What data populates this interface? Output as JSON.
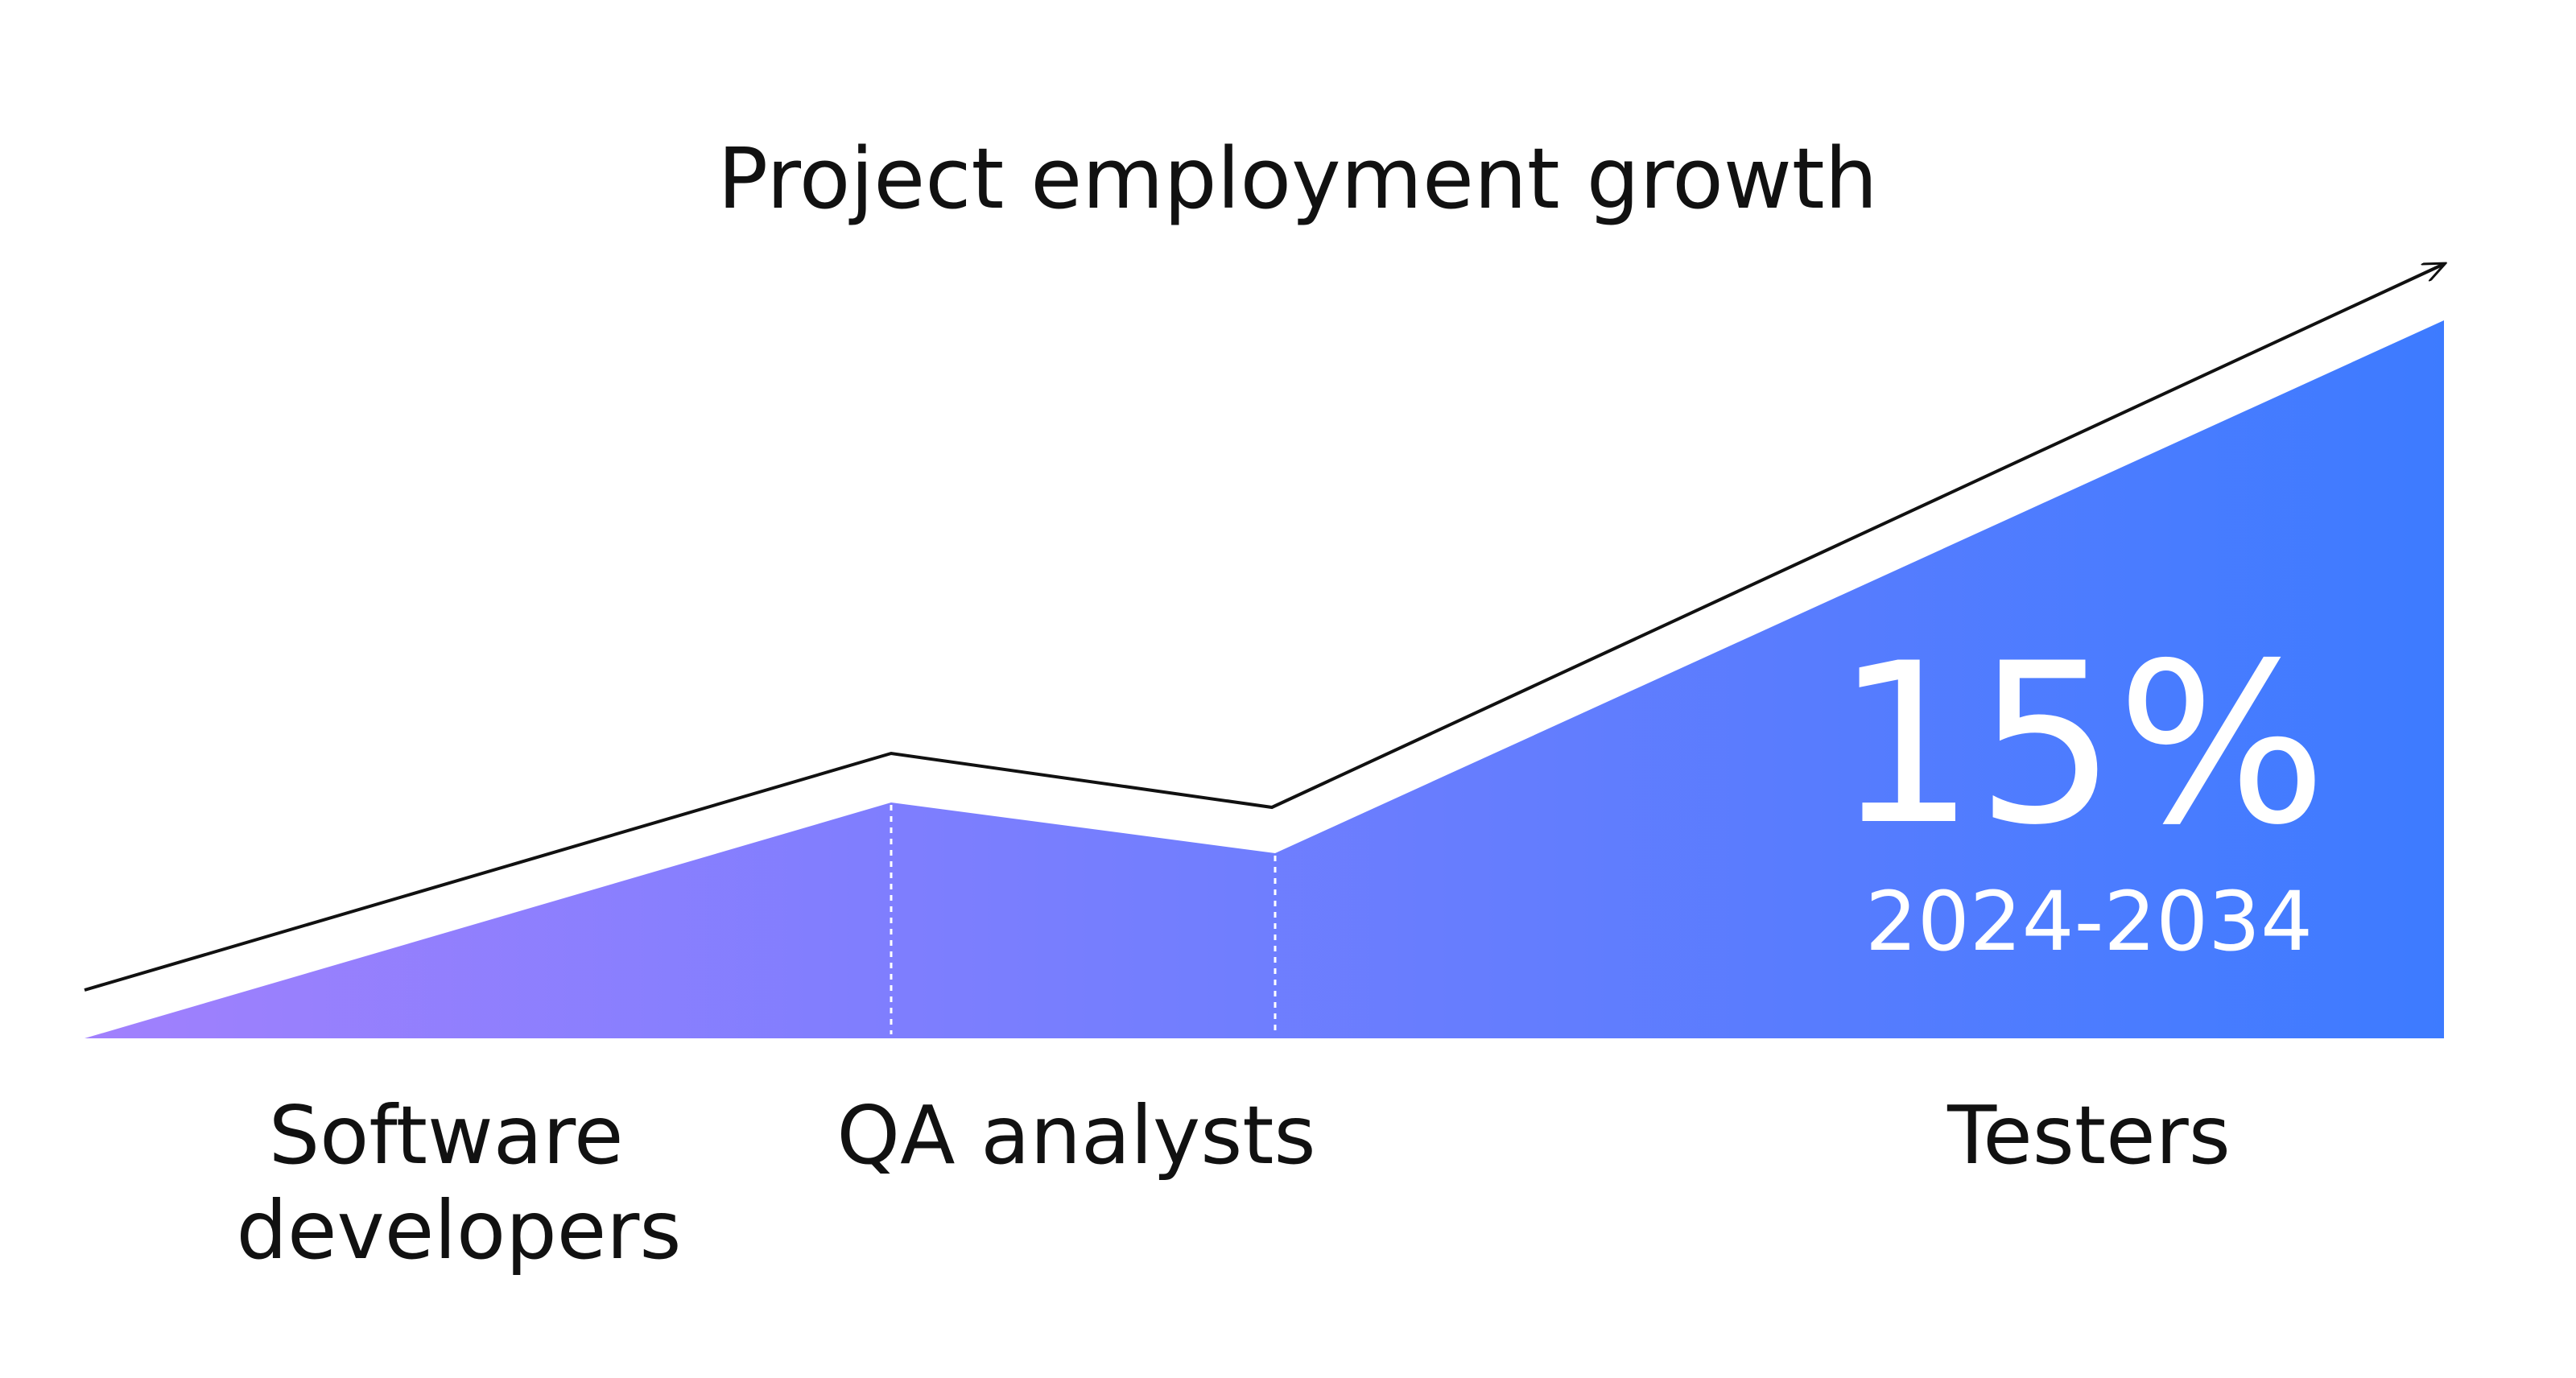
{
  "chart_data": {
    "type": "area",
    "title": "Project employment growth",
    "categories": [
      "Software developers",
      "QA analysts",
      "Testers"
    ],
    "category_lines": [
      [
        "Software",
        "developers"
      ],
      [
        "QA analysts"
      ],
      [
        "Testers"
      ]
    ],
    "annotation": {
      "value": "15%",
      "period": "2024-2034"
    },
    "grid": false,
    "legend": "none",
    "colors": {
      "fill_start": "#a180fd",
      "fill_end": "#3d7bff",
      "trend_line": "#111111",
      "divider": "#ffffff",
      "text": "#111111",
      "annotation_text": "#ffffff"
    }
  }
}
